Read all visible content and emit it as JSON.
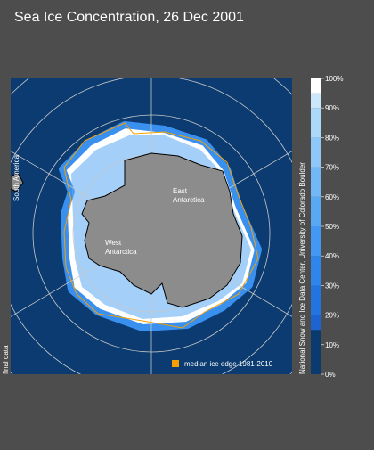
{
  "header": {
    "title": "Sea Ice Concentration, 26 Dec 2001"
  },
  "map": {
    "labels": {
      "east": [
        "East",
        "Antarctica"
      ],
      "west": [
        "West",
        "Antarctica"
      ],
      "south_america": "South America"
    },
    "status": "final data",
    "legend": {
      "label": "median ice edge 1981-2010",
      "color": "#f5a000"
    },
    "credit": "National Snow and Ice Data Center, University of Colorado Boulder"
  },
  "colorbar": {
    "range": [
      0,
      100
    ],
    "ticks": [
      {
        "value": 0,
        "label": "0%"
      },
      {
        "value": 10,
        "label": "10%"
      },
      {
        "value": 20,
        "label": "20%"
      },
      {
        "value": 30,
        "label": "30%"
      },
      {
        "value": 40,
        "label": "40%"
      },
      {
        "value": 50,
        "label": "50%"
      },
      {
        "value": 60,
        "label": "60%"
      },
      {
        "value": 70,
        "label": "70%"
      },
      {
        "value": 80,
        "label": "80%"
      },
      {
        "value": 90,
        "label": "90%"
      },
      {
        "value": 100,
        "label": "100%"
      }
    ],
    "segments": [
      {
        "from": 0,
        "to": 15,
        "color": "#0b3a6e"
      },
      {
        "from": 15,
        "to": 20,
        "color": "#1c64d2"
      },
      {
        "from": 20,
        "to": 30,
        "color": "#2274e0"
      },
      {
        "from": 30,
        "to": 40,
        "color": "#2e86ec"
      },
      {
        "from": 40,
        "to": 50,
        "color": "#4298f2"
      },
      {
        "from": 50,
        "to": 60,
        "color": "#58a8f4"
      },
      {
        "from": 60,
        "to": 70,
        "color": "#72b8f6"
      },
      {
        "from": 70,
        "to": 80,
        "color": "#8ec8f8"
      },
      {
        "from": 80,
        "to": 90,
        "color": "#acd8fa"
      },
      {
        "from": 90,
        "to": 95,
        "color": "#cce6fc"
      },
      {
        "from": 95,
        "to": 100,
        "color": "#ffffff"
      }
    ]
  }
}
